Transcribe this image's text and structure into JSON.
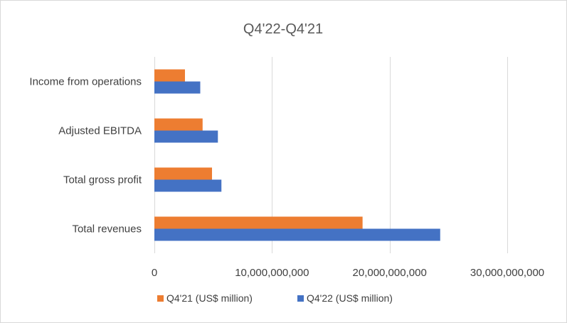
{
  "chart_data": {
    "type": "bar",
    "orientation": "horizontal",
    "title": "Q4'22-Q4'21",
    "xlabel": "",
    "ylabel": "",
    "categories": [
      "Income from operations",
      "Adjusted EBITDA",
      "Total gross profit",
      "Total revenues"
    ],
    "series": [
      {
        "name": "Q4'21 (US$ million)",
        "color": "#ed7d31",
        "values": [
          2600000000,
          4100000000,
          4900000000,
          17700000000
        ]
      },
      {
        "name": "Q4'22 (US$ million)",
        "color": "#4472c4",
        "values": [
          3900000000,
          5400000000,
          5700000000,
          24300000000
        ]
      }
    ],
    "xlim": [
      0,
      30000000000
    ],
    "xticks": [
      0,
      10000000000,
      20000000000,
      30000000000
    ],
    "xtick_labels": [
      "0",
      "10,000,000,000",
      "20,000,000,000",
      "30,000,000,000"
    ],
    "grid": true,
    "legend": "bottom"
  }
}
